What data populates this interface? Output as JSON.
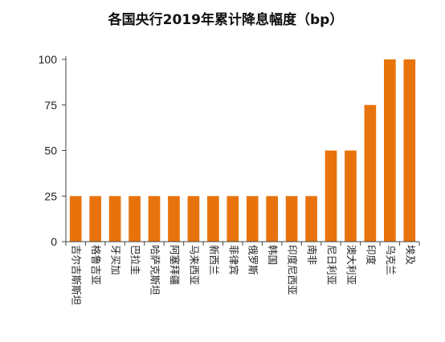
{
  "chart_data": {
    "type": "bar",
    "title": "各国央行2019年累计降息幅度（bp）",
    "xlabel": "",
    "ylabel": "",
    "ylim": [
      0,
      100
    ],
    "yticks": [
      0,
      25,
      50,
      75,
      100
    ],
    "grid": false,
    "legend": "none",
    "bar_color": "#E8730C",
    "categories": [
      "吉尔吉斯斯坦",
      "格鲁吉亚",
      "牙买加",
      "巴拉圭",
      "哈萨克斯坦",
      "阿塞拜疆",
      "马来西亚",
      "新西兰",
      "菲律宾",
      "俄罗斯",
      "韩国",
      "印度尼西亚",
      "南非",
      "尼日利亚",
      "澳大利亚",
      "印度",
      "乌克兰",
      "埃及"
    ],
    "values": [
      25,
      25,
      25,
      25,
      25,
      25,
      25,
      25,
      25,
      25,
      25,
      25,
      25,
      50,
      50,
      75,
      100,
      100
    ]
  }
}
